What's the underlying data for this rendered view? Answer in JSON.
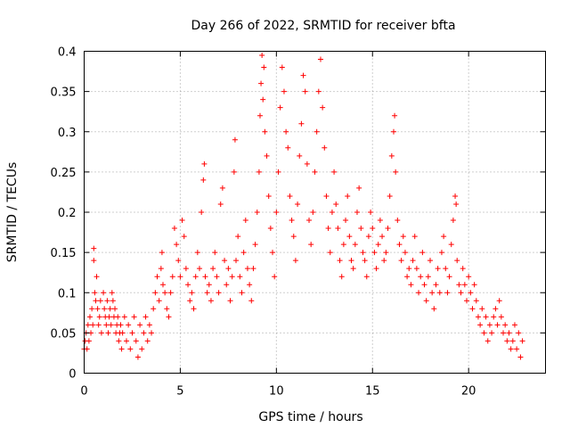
{
  "chart_data": {
    "type": "scatter",
    "title": "Day 266 of 2022, SRMTID for receiver bfta",
    "xlabel": "GPS time / hours",
    "ylabel": "SRMTID / TECUs",
    "xlim": [
      0,
      24
    ],
    "ylim": [
      0,
      0.4
    ],
    "x_ticks": [
      0,
      5,
      10,
      15,
      20
    ],
    "y_ticks": [
      0,
      0.05,
      0.1,
      0.15,
      0.2,
      0.25,
      0.3,
      0.35,
      0.4
    ],
    "x_tick_labels": [
      "0",
      "5",
      "10",
      "15",
      "20"
    ],
    "y_tick_labels": [
      "0",
      "0.05",
      "0.1",
      "0.15",
      "0.2",
      "0.25",
      "0.3",
      "0.35",
      "0.4"
    ],
    "grid": true,
    "marker": "plus",
    "color": "#ff0000",
    "series": [
      {
        "points": [
          [
            0.0,
            0.03
          ],
          [
            0.05,
            0.04
          ],
          [
            0.1,
            0.05
          ],
          [
            0.15,
            0.03
          ],
          [
            0.2,
            0.06
          ],
          [
            0.25,
            0.04
          ],
          [
            0.3,
            0.07
          ],
          [
            0.35,
            0.05
          ],
          [
            0.4,
            0.08
          ],
          [
            0.45,
            0.06
          ],
          [
            0.5,
            0.14
          ],
          [
            0.5,
            0.155
          ],
          [
            0.55,
            0.1
          ],
          [
            0.6,
            0.09
          ],
          [
            0.65,
            0.12
          ],
          [
            0.7,
            0.08
          ],
          [
            0.75,
            0.06
          ],
          [
            0.8,
            0.07
          ],
          [
            0.85,
            0.09
          ],
          [
            0.9,
            0.05
          ],
          [
            1.0,
            0.1
          ],
          [
            1.05,
            0.08
          ],
          [
            1.1,
            0.07
          ],
          [
            1.15,
            0.06
          ],
          [
            1.2,
            0.09
          ],
          [
            1.25,
            0.05
          ],
          [
            1.3,
            0.07
          ],
          [
            1.35,
            0.08
          ],
          [
            1.4,
            0.06
          ],
          [
            1.45,
            0.1
          ],
          [
            1.5,
            0.09
          ],
          [
            1.55,
            0.07
          ],
          [
            1.6,
            0.08
          ],
          [
            1.65,
            0.05
          ],
          [
            1.7,
            0.06
          ],
          [
            1.75,
            0.07
          ],
          [
            1.8,
            0.04
          ],
          [
            1.85,
            0.05
          ],
          [
            1.9,
            0.06
          ],
          [
            1.95,
            0.03
          ],
          [
            2.0,
            0.05
          ],
          [
            2.1,
            0.07
          ],
          [
            2.2,
            0.04
          ],
          [
            2.3,
            0.06
          ],
          [
            2.4,
            0.03
          ],
          [
            2.5,
            0.05
          ],
          [
            2.6,
            0.07
          ],
          [
            2.7,
            0.04
          ],
          [
            2.8,
            0.02
          ],
          [
            2.9,
            0.06
          ],
          [
            3.0,
            0.03
          ],
          [
            3.1,
            0.05
          ],
          [
            3.2,
            0.07
          ],
          [
            3.3,
            0.04
          ],
          [
            3.4,
            0.06
          ],
          [
            3.5,
            0.05
          ],
          [
            3.6,
            0.08
          ],
          [
            3.7,
            0.1
          ],
          [
            3.8,
            0.12
          ],
          [
            3.9,
            0.09
          ],
          [
            4.0,
            0.13
          ],
          [
            4.05,
            0.15
          ],
          [
            4.1,
            0.11
          ],
          [
            4.2,
            0.1
          ],
          [
            4.3,
            0.08
          ],
          [
            4.4,
            0.07
          ],
          [
            4.5,
            0.1
          ],
          [
            4.6,
            0.12
          ],
          [
            4.7,
            0.18
          ],
          [
            4.8,
            0.16
          ],
          [
            4.9,
            0.14
          ],
          [
            5.0,
            0.12
          ],
          [
            5.1,
            0.19
          ],
          [
            5.2,
            0.17
          ],
          [
            5.3,
            0.13
          ],
          [
            5.4,
            0.11
          ],
          [
            5.5,
            0.09
          ],
          [
            5.6,
            0.1
          ],
          [
            5.7,
            0.08
          ],
          [
            5.8,
            0.12
          ],
          [
            5.9,
            0.15
          ],
          [
            6.0,
            0.13
          ],
          [
            6.1,
            0.2
          ],
          [
            6.2,
            0.24
          ],
          [
            6.25,
            0.26
          ],
          [
            6.3,
            0.12
          ],
          [
            6.4,
            0.1
          ],
          [
            6.5,
            0.11
          ],
          [
            6.6,
            0.09
          ],
          [
            6.7,
            0.13
          ],
          [
            6.8,
            0.15
          ],
          [
            6.9,
            0.12
          ],
          [
            7.0,
            0.1
          ],
          [
            7.1,
            0.21
          ],
          [
            7.2,
            0.23
          ],
          [
            7.3,
            0.14
          ],
          [
            7.4,
            0.11
          ],
          [
            7.5,
            0.13
          ],
          [
            7.6,
            0.09
          ],
          [
            7.7,
            0.12
          ],
          [
            7.8,
            0.25
          ],
          [
            7.85,
            0.29
          ],
          [
            7.9,
            0.14
          ],
          [
            8.0,
            0.17
          ],
          [
            8.1,
            0.12
          ],
          [
            8.2,
            0.1
          ],
          [
            8.3,
            0.15
          ],
          [
            8.4,
            0.19
          ],
          [
            8.5,
            0.13
          ],
          [
            8.6,
            0.11
          ],
          [
            8.7,
            0.09
          ],
          [
            8.8,
            0.13
          ],
          [
            8.9,
            0.16
          ],
          [
            9.0,
            0.2
          ],
          [
            9.1,
            0.25
          ],
          [
            9.15,
            0.32
          ],
          [
            9.2,
            0.36
          ],
          [
            9.25,
            0.395
          ],
          [
            9.3,
            0.34
          ],
          [
            9.35,
            0.38
          ],
          [
            9.4,
            0.3
          ],
          [
            9.5,
            0.27
          ],
          [
            9.6,
            0.22
          ],
          [
            9.7,
            0.18
          ],
          [
            9.8,
            0.15
          ],
          [
            9.9,
            0.12
          ],
          [
            10.0,
            0.2
          ],
          [
            10.1,
            0.25
          ],
          [
            10.2,
            0.33
          ],
          [
            10.3,
            0.38
          ],
          [
            10.4,
            0.35
          ],
          [
            10.5,
            0.3
          ],
          [
            10.6,
            0.28
          ],
          [
            10.7,
            0.22
          ],
          [
            10.8,
            0.19
          ],
          [
            10.9,
            0.17
          ],
          [
            11.0,
            0.14
          ],
          [
            11.1,
            0.21
          ],
          [
            11.2,
            0.27
          ],
          [
            11.3,
            0.31
          ],
          [
            11.4,
            0.37
          ],
          [
            11.5,
            0.35
          ],
          [
            11.6,
            0.26
          ],
          [
            11.7,
            0.19
          ],
          [
            11.8,
            0.16
          ],
          [
            11.9,
            0.2
          ],
          [
            12.0,
            0.25
          ],
          [
            12.1,
            0.3
          ],
          [
            12.2,
            0.35
          ],
          [
            12.3,
            0.39
          ],
          [
            12.4,
            0.33
          ],
          [
            12.5,
            0.28
          ],
          [
            12.6,
            0.22
          ],
          [
            12.7,
            0.18
          ],
          [
            12.8,
            0.15
          ],
          [
            12.9,
            0.2
          ],
          [
            13.0,
            0.25
          ],
          [
            13.1,
            0.21
          ],
          [
            13.2,
            0.18
          ],
          [
            13.3,
            0.14
          ],
          [
            13.4,
            0.12
          ],
          [
            13.5,
            0.16
          ],
          [
            13.6,
            0.19
          ],
          [
            13.7,
            0.22
          ],
          [
            13.8,
            0.17
          ],
          [
            13.9,
            0.14
          ],
          [
            14.0,
            0.13
          ],
          [
            14.1,
            0.16
          ],
          [
            14.2,
            0.2
          ],
          [
            14.3,
            0.23
          ],
          [
            14.4,
            0.18
          ],
          [
            14.5,
            0.15
          ],
          [
            14.6,
            0.14
          ],
          [
            14.7,
            0.12
          ],
          [
            14.8,
            0.17
          ],
          [
            14.9,
            0.2
          ],
          [
            15.0,
            0.18
          ],
          [
            15.1,
            0.15
          ],
          [
            15.2,
            0.13
          ],
          [
            15.3,
            0.16
          ],
          [
            15.4,
            0.19
          ],
          [
            15.5,
            0.17
          ],
          [
            15.6,
            0.14
          ],
          [
            15.7,
            0.15
          ],
          [
            15.8,
            0.18
          ],
          [
            15.9,
            0.22
          ],
          [
            16.0,
            0.27
          ],
          [
            16.1,
            0.3
          ],
          [
            16.15,
            0.32
          ],
          [
            16.2,
            0.25
          ],
          [
            16.3,
            0.19
          ],
          [
            16.4,
            0.16
          ],
          [
            16.5,
            0.14
          ],
          [
            16.6,
            0.17
          ],
          [
            16.7,
            0.15
          ],
          [
            16.8,
            0.12
          ],
          [
            16.9,
            0.13
          ],
          [
            17.0,
            0.11
          ],
          [
            17.1,
            0.14
          ],
          [
            17.2,
            0.17
          ],
          [
            17.3,
            0.13
          ],
          [
            17.4,
            0.1
          ],
          [
            17.5,
            0.12
          ],
          [
            17.6,
            0.15
          ],
          [
            17.7,
            0.11
          ],
          [
            17.8,
            0.09
          ],
          [
            17.9,
            0.12
          ],
          [
            18.0,
            0.14
          ],
          [
            18.1,
            0.1
          ],
          [
            18.2,
            0.08
          ],
          [
            18.3,
            0.11
          ],
          [
            18.4,
            0.13
          ],
          [
            18.5,
            0.1
          ],
          [
            18.6,
            0.15
          ],
          [
            18.7,
            0.17
          ],
          [
            18.8,
            0.13
          ],
          [
            18.9,
            0.1
          ],
          [
            19.0,
            0.12
          ],
          [
            19.1,
            0.16
          ],
          [
            19.2,
            0.19
          ],
          [
            19.3,
            0.22
          ],
          [
            19.35,
            0.21
          ],
          [
            19.4,
            0.14
          ],
          [
            19.5,
            0.11
          ],
          [
            19.6,
            0.1
          ],
          [
            19.7,
            0.13
          ],
          [
            19.8,
            0.11
          ],
          [
            19.9,
            0.09
          ],
          [
            20.0,
            0.12
          ],
          [
            20.1,
            0.1
          ],
          [
            20.2,
            0.08
          ],
          [
            20.3,
            0.11
          ],
          [
            20.4,
            0.09
          ],
          [
            20.5,
            0.07
          ],
          [
            20.6,
            0.06
          ],
          [
            20.7,
            0.08
          ],
          [
            20.8,
            0.05
          ],
          [
            20.9,
            0.07
          ],
          [
            21.0,
            0.04
          ],
          [
            21.1,
            0.06
          ],
          [
            21.2,
            0.05
          ],
          [
            21.3,
            0.07
          ],
          [
            21.4,
            0.08
          ],
          [
            21.5,
            0.06
          ],
          [
            21.6,
            0.09
          ],
          [
            21.7,
            0.07
          ],
          [
            21.8,
            0.05
          ],
          [
            21.9,
            0.06
          ],
          [
            22.0,
            0.04
          ],
          [
            22.1,
            0.05
          ],
          [
            22.2,
            0.03
          ],
          [
            22.3,
            0.04
          ],
          [
            22.4,
            0.06
          ],
          [
            22.5,
            0.03
          ],
          [
            22.6,
            0.05
          ],
          [
            22.7,
            0.02
          ],
          [
            22.8,
            0.04
          ]
        ]
      }
    ]
  }
}
